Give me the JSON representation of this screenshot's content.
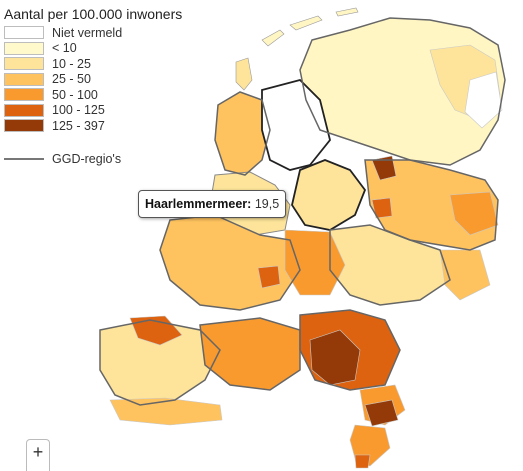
{
  "legend": {
    "title": "Aantal per 100.000 inwoners",
    "items": [
      {
        "label": "Niet vermeld",
        "color": "#ffffff"
      },
      {
        "label": "< 10",
        "color": "#fff9cc"
      },
      {
        "label": "10 - 25",
        "color": "#fde49a"
      },
      {
        "label": "25 - 50",
        "color": "#fec25f"
      },
      {
        "label": "50 - 100",
        "color": "#f99a2f"
      },
      {
        "label": "100 - 125",
        "color": "#dd6310"
      },
      {
        "label": "125 - 397",
        "color": "#933a08"
      }
    ],
    "boundary_label": "GGD-regio's",
    "boundary_color": "#777777"
  },
  "tooltip": {
    "name": "Haarlemmermeer",
    "value": "19,5"
  },
  "zoom": {
    "zoom_in_label": "+"
  }
}
